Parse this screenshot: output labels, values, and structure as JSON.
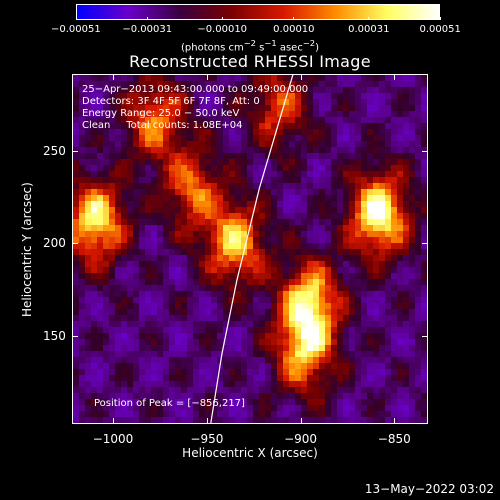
{
  "chart_data": {
    "type": "heatmap",
    "title": "Reconstructed RHESSI Image",
    "xlabel": "Heliocentric X (arcsec)",
    "ylabel": "Heliocentric Y (arcsec)",
    "xlim": [
      -1022,
      -832
    ],
    "ylim": [
      102,
      292
    ],
    "x_ticks": [
      -1000,
      -950,
      -900,
      -850
    ],
    "x_tick_labels": [
      "−1000",
      "−950",
      "−900",
      "−850"
    ],
    "y_ticks": [
      150,
      200,
      250
    ],
    "y_tick_labels": [
      "150",
      "200",
      "250"
    ],
    "colorbar": {
      "ticks": [
        -0.00051,
        -0.00031,
        -0.0001,
        0.0001,
        0.00031,
        0.00051
      ],
      "tick_labels": [
        "−0.00051",
        "−0.00031",
        "−0.00010",
        "0.00010",
        "0.00031",
        "0.00051"
      ],
      "units_html": "(photons cm<sup>−2</sup> s<sup>−1</sup> asec<sup>−2</sup>)",
      "colors": [
        "#0000ff",
        "#6a00c8",
        "#3a0040",
        "#7a0000",
        "#d81800",
        "#ff8c00",
        "#ffff60",
        "#ffffff"
      ]
    },
    "sources": [
      {
        "x": -858,
        "y": 216,
        "rel": 1.0
      },
      {
        "x": -1010,
        "y": 212,
        "rel": 0.9
      },
      {
        "x": -895,
        "y": 168,
        "rel": 0.85
      },
      {
        "x": -898,
        "y": 140,
        "rel": 0.7
      },
      {
        "x": -935,
        "y": 200,
        "rel": 0.8
      },
      {
        "x": -978,
        "y": 268,
        "rel": 0.65
      },
      {
        "x": -958,
        "y": 230,
        "rel": 0.6
      },
      {
        "x": -912,
        "y": 275,
        "rel": 0.55
      }
    ],
    "limb_curve": [
      [
        -948,
        102
      ],
      [
        -942,
        140
      ],
      [
        -934,
        180
      ],
      [
        -922,
        230
      ],
      [
        -904,
        292
      ]
    ],
    "info_lines": [
      "25−Apr−2013 09:43:00.000 to 09:49:00.000",
      "Detectors: 3F 4F 5F 6F 7F 8F, Att: 0",
      "Energy Range: 25.0 − 50.0 keV",
      "Clean     Total counts: 1.08E+04"
    ],
    "peak_label": "Position of Peak = [−856,217]"
  },
  "footer_timestamp": "13−May−2022 03:02"
}
